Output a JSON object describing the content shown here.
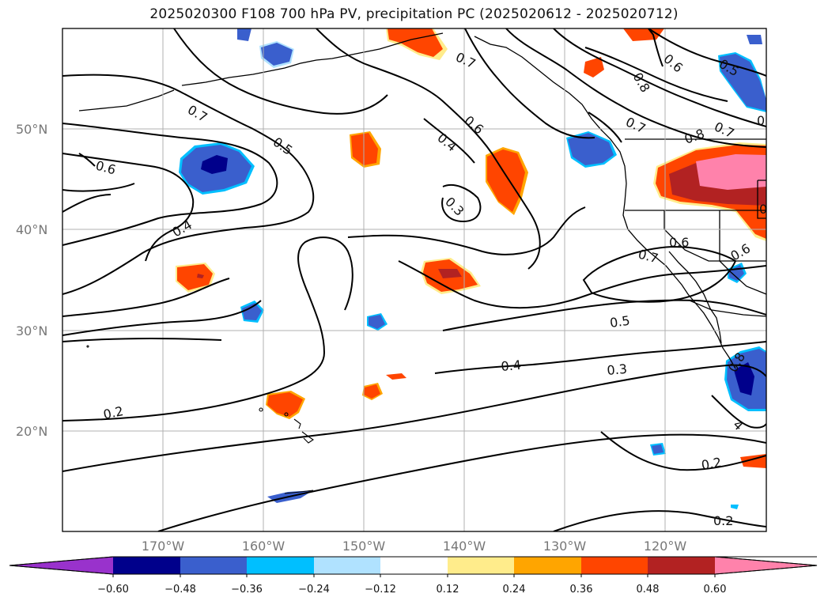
{
  "title": "2025020300 F108 700 hPa PV, precipitation PC (2025020612 - 2025020712)",
  "map": {
    "lat_labels": [
      "50°N",
      "40°N",
      "30°N",
      "20°N"
    ],
    "lon_labels": [
      "170°W",
      "160°W",
      "150°W",
      "140°W",
      "130°W",
      "120°W"
    ],
    "contour_labels": [
      {
        "id": "c1",
        "text": "0.7"
      },
      {
        "id": "c2",
        "text": "0.6"
      },
      {
        "id": "c3",
        "text": "0.5"
      },
      {
        "id": "c4",
        "text": "0.4"
      },
      {
        "id": "c5",
        "text": "0.7"
      },
      {
        "id": "c6",
        "text": "0.6"
      },
      {
        "id": "c7",
        "text": "0.4"
      },
      {
        "id": "c8",
        "text": "0.3"
      },
      {
        "id": "c9",
        "text": "0.8"
      },
      {
        "id": "c10",
        "text": "0.6"
      },
      {
        "id": "c11",
        "text": "0.5"
      },
      {
        "id": "c12",
        "text": "0.7"
      },
      {
        "id": "c13",
        "text": "0.7"
      },
      {
        "id": "c14",
        "text": "0.8"
      },
      {
        "id": "c15",
        "text": "0.6"
      },
      {
        "id": "c16",
        "text": "0.7"
      },
      {
        "id": "c17",
        "text": "0.6"
      },
      {
        "id": "c18",
        "text": "0.5"
      },
      {
        "id": "c19",
        "text": "0.4"
      },
      {
        "id": "c20",
        "text": "0.3"
      },
      {
        "id": "c21",
        "text": "0.2"
      },
      {
        "id": "c22",
        "text": "0.2"
      },
      {
        "id": "c23",
        "text": "0.2"
      },
      {
        "id": "c24",
        "text": "0"
      },
      {
        "id": "c25",
        "text": "0.8"
      },
      {
        "id": "c26",
        "text": "4"
      },
      {
        "id": "c27",
        "text": "0"
      }
    ]
  },
  "colorbar": {
    "ticks": [
      "−0.60",
      "−0.48",
      "−0.36",
      "−0.24",
      "−0.12",
      "0.12",
      "0.24",
      "0.36",
      "0.48",
      "0.60"
    ],
    "colors": [
      "#9932cc",
      "#00008b",
      "#3a5fcd",
      "#00bfff",
      "#b0e2ff",
      "#ffffff",
      "#ffec8b",
      "#ffa500",
      "#ff4500",
      "#b22222",
      "#ff82ab"
    ]
  }
}
